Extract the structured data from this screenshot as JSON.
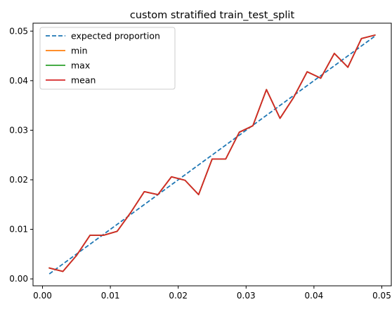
{
  "chart_data": {
    "type": "line",
    "title": "custom stratified train_test_split",
    "xlabel": "",
    "ylabel": "",
    "xlim": [
      -0.0014,
      0.0514
    ],
    "ylim": [
      -0.0014,
      0.0516
    ],
    "xticks": [
      0.0,
      0.01,
      0.02,
      0.03,
      0.04,
      0.05
    ],
    "xtick_labels": [
      "0.00",
      "0.01",
      "0.02",
      "0.03",
      "0.04",
      "0.05"
    ],
    "yticks": [
      0.0,
      0.01,
      0.02,
      0.03,
      0.04,
      0.05
    ],
    "ytick_labels": [
      "0.00",
      "0.01",
      "0.02",
      "0.03",
      "0.04",
      "0.05"
    ],
    "grid": false,
    "legend_position": "upper-left",
    "x": [
      0.001,
      0.003,
      0.005,
      0.007,
      0.009,
      0.011,
      0.013,
      0.015,
      0.017,
      0.019,
      0.021,
      0.023,
      0.025,
      0.027,
      0.029,
      0.031,
      0.033,
      0.035,
      0.037,
      0.039,
      0.041,
      0.043,
      0.045,
      0.047,
      0.049
    ],
    "series": [
      {
        "name": "expected proportion",
        "color": "#1f77b4",
        "dash": "dashed",
        "values": [
          0.001,
          0.003,
          0.005,
          0.007,
          0.009,
          0.011,
          0.013,
          0.015,
          0.017,
          0.019,
          0.021,
          0.023,
          0.025,
          0.027,
          0.029,
          0.031,
          0.033,
          0.035,
          0.037,
          0.039,
          0.041,
          0.043,
          0.045,
          0.047,
          0.049
        ]
      },
      {
        "name": "min",
        "color": "#ff7f0e",
        "dash": "solid",
        "values": [
          0.0022,
          0.0015,
          0.0047,
          0.0088,
          0.0088,
          0.0096,
          0.0134,
          0.0176,
          0.017,
          0.0206,
          0.0199,
          0.017,
          0.0242,
          0.0242,
          0.0296,
          0.0309,
          0.0382,
          0.0324,
          0.0366,
          0.0418,
          0.0405,
          0.0455,
          0.0427,
          0.0485,
          0.0492
        ]
      },
      {
        "name": "max",
        "color": "#2ca02c",
        "dash": "solid",
        "values": [
          0.0022,
          0.0015,
          0.0047,
          0.0088,
          0.0088,
          0.0096,
          0.0134,
          0.0176,
          0.017,
          0.0206,
          0.0199,
          0.017,
          0.0242,
          0.0242,
          0.0296,
          0.0309,
          0.0382,
          0.0324,
          0.0366,
          0.0418,
          0.0405,
          0.0455,
          0.0427,
          0.0485,
          0.0492
        ]
      },
      {
        "name": "mean",
        "color": "#d62728",
        "dash": "solid",
        "values": [
          0.0022,
          0.0015,
          0.0047,
          0.0088,
          0.0088,
          0.0096,
          0.0134,
          0.0176,
          0.017,
          0.0206,
          0.0199,
          0.017,
          0.0242,
          0.0242,
          0.0296,
          0.0309,
          0.0382,
          0.0324,
          0.0366,
          0.0418,
          0.0405,
          0.0455,
          0.0427,
          0.0485,
          0.0492
        ]
      }
    ]
  }
}
